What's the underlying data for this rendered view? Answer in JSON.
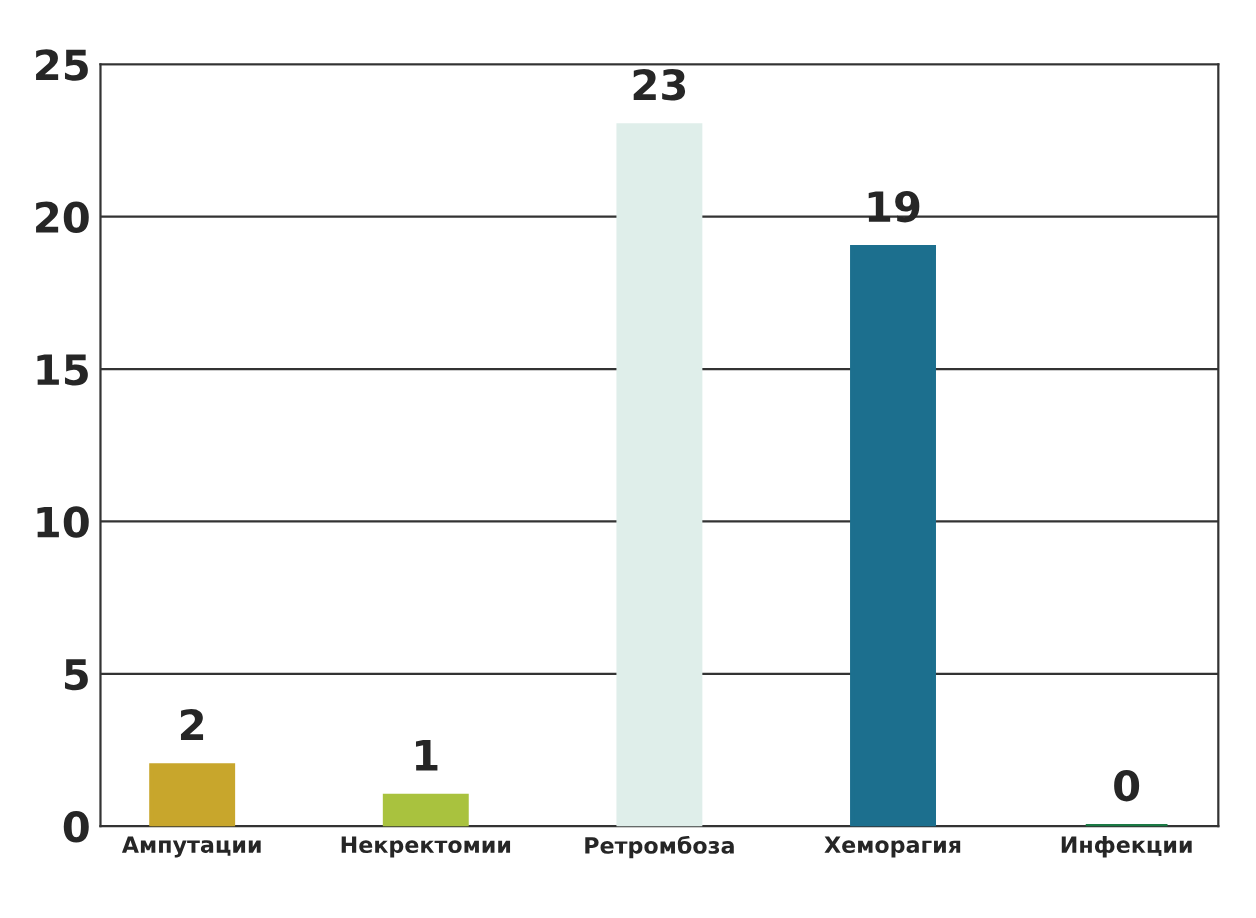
{
  "chart_data": {
    "type": "bar",
    "categories": [
      "Ампутации",
      "Некректомии",
      "Ретромбоза",
      "Хеморагия",
      "Инфекции"
    ],
    "values": [
      2,
      1,
      23,
      19,
      0
    ],
    "colors": [
      "#c8a62c",
      "#a9c23e",
      "#dfeeea",
      "#1c6f8e",
      "#1b7a45"
    ],
    "ylim": [
      0,
      25
    ],
    "yticks": [
      0,
      5,
      10,
      15,
      20,
      25
    ],
    "grid": "y",
    "data_labels": true
  }
}
